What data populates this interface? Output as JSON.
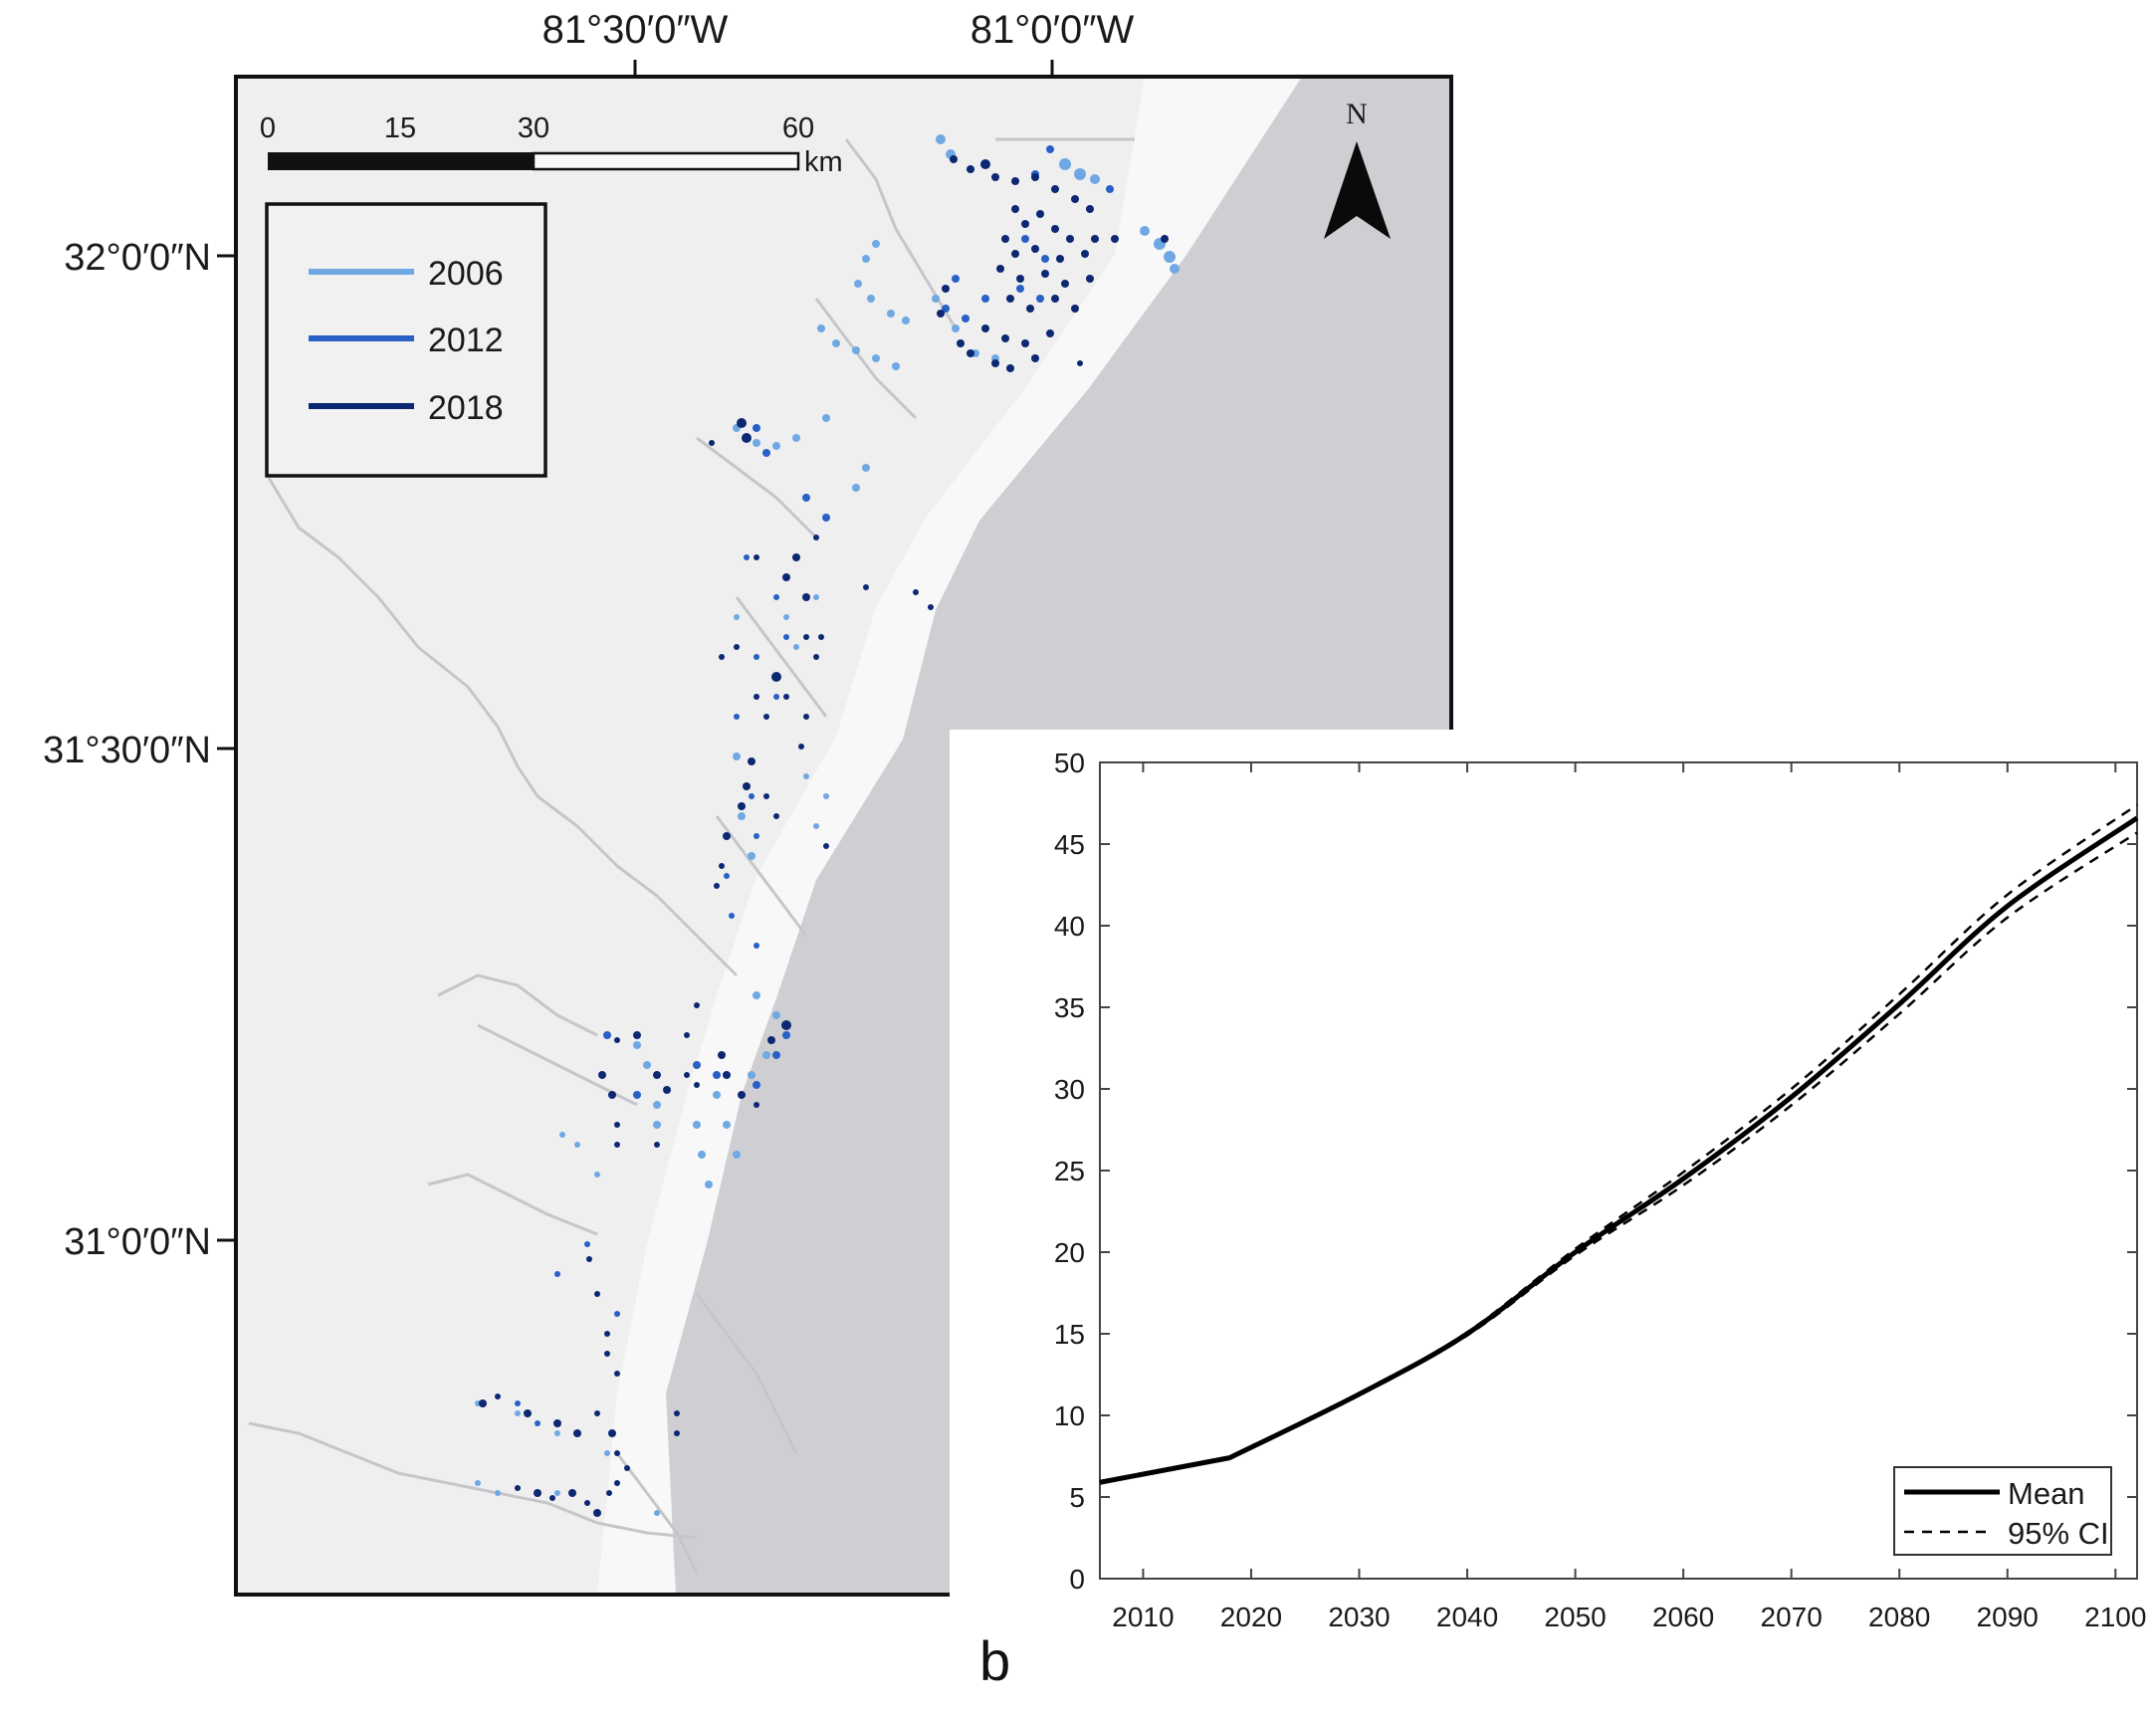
{
  "map": {
    "lon_labels": [
      {
        "text": "81°30′0″W",
        "x": 638
      },
      {
        "text": "81°0′0″W",
        "x": 1057
      }
    ],
    "lat_labels": [
      {
        "text": "32°0′0″N",
        "y": 257
      },
      {
        "text": "31°30′0″N",
        "y": 752
      },
      {
        "text": "31°0′0″N",
        "y": 1246
      }
    ],
    "scale_bar": {
      "ticks": [
        "0",
        "15",
        "30",
        "60"
      ],
      "unit": "km"
    },
    "north_arrow": {
      "label": "N"
    },
    "legend": {
      "items": [
        {
          "label": "2006",
          "color": "#6fa8e3"
        },
        {
          "label": "2012",
          "color": "#2860c6"
        },
        {
          "label": "2018",
          "color": "#0c2872"
        }
      ]
    },
    "colors": {
      "land": "#efeff0",
      "ocean": "#cfcfd3",
      "rivers": "#c4c4c8"
    }
  },
  "panel_label": "b",
  "chart_data": {
    "type": "line",
    "title": "",
    "xlabel": "",
    "ylabel": "",
    "xlim": [
      2006,
      2102
    ],
    "ylim": [
      0,
      50
    ],
    "x_ticks": [
      "2010",
      "2020",
      "2030",
      "2040",
      "2050",
      "2060",
      "2070",
      "2080",
      "2090",
      "2100"
    ],
    "y_ticks": [
      "0",
      "5",
      "10",
      "15",
      "20",
      "25",
      "30",
      "35",
      "40",
      "45",
      "50"
    ],
    "grid": false,
    "legend_position": "lower right",
    "x": [
      2006,
      2018,
      2030,
      2040,
      2050,
      2060,
      2070,
      2080,
      2090,
      2102
    ],
    "series": [
      {
        "name": "Mean",
        "style": "solid",
        "values": [
          5.9,
          7.4,
          11.3,
          15.0,
          20.0,
          24.5,
          29.5,
          35.2,
          41.2,
          46.6
        ]
      },
      {
        "name": "95% CI upper",
        "style": "dashed",
        "values": [
          5.9,
          7.4,
          11.3,
          15.1,
          20.2,
          24.9,
          30.0,
          35.8,
          41.9,
          47.4
        ]
      },
      {
        "name": "95% CI lower",
        "style": "dashed",
        "values": [
          5.9,
          7.4,
          11.3,
          14.9,
          19.8,
          24.1,
          29.0,
          34.6,
          40.5,
          45.7
        ]
      }
    ],
    "legend": [
      {
        "label": "Mean",
        "style": "solid"
      },
      {
        "label": "95% CI",
        "style": "dashed"
      }
    ]
  }
}
